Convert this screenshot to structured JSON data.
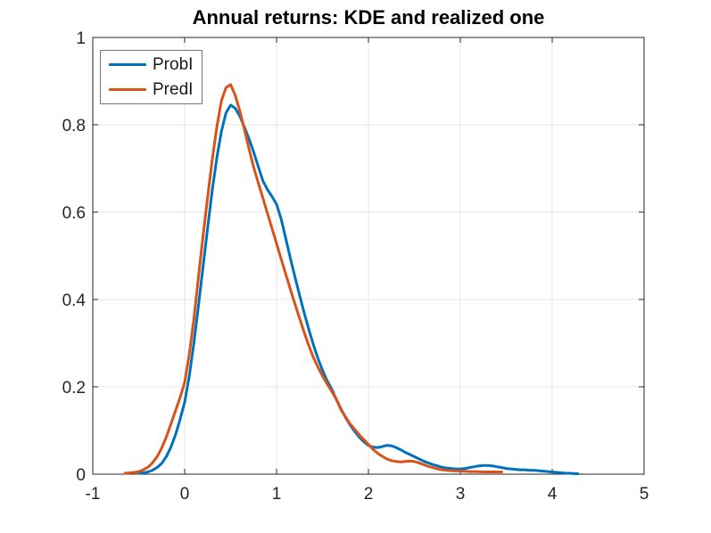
{
  "figure": {
    "background": "#ffffff"
  },
  "axes": {
    "color": "#262626",
    "grid_color": "#e6e6e6",
    "tick_label_color": "#262626",
    "tick_font_size": 19
  },
  "chart_data": {
    "type": "line",
    "title": "Annual returns: KDE and realized one",
    "xlabel": "",
    "ylabel": "",
    "xlim": [
      -1,
      5
    ],
    "ylim": [
      0,
      1
    ],
    "xticks": [
      -1,
      0,
      1,
      2,
      3,
      4,
      5
    ],
    "xtick_labels": [
      "-1",
      "0",
      "1",
      "2",
      "3",
      "4",
      "5"
    ],
    "yticks": [
      0,
      0.2,
      0.4,
      0.6,
      0.8,
      1
    ],
    "ytick_labels": [
      "0",
      "0.2",
      "0.4",
      "0.6",
      "0.8",
      "1"
    ],
    "grid": true,
    "legend_position": "top-left",
    "series": [
      {
        "name": "ProbI",
        "color": "#0072BD",
        "line_width": 3,
        "points": [
          [
            -0.5,
            0.002
          ],
          [
            -0.45,
            0.003
          ],
          [
            -0.4,
            0.005
          ],
          [
            -0.35,
            0.009
          ],
          [
            -0.3,
            0.015
          ],
          [
            -0.25,
            0.025
          ],
          [
            -0.2,
            0.04
          ],
          [
            -0.15,
            0.062
          ],
          [
            -0.1,
            0.09
          ],
          [
            -0.05,
            0.125
          ],
          [
            0,
            0.165
          ],
          [
            0.05,
            0.225
          ],
          [
            0.1,
            0.3
          ],
          [
            0.15,
            0.385
          ],
          [
            0.2,
            0.475
          ],
          [
            0.25,
            0.565
          ],
          [
            0.3,
            0.65
          ],
          [
            0.35,
            0.725
          ],
          [
            0.4,
            0.785
          ],
          [
            0.45,
            0.827
          ],
          [
            0.5,
            0.845
          ],
          [
            0.55,
            0.838
          ],
          [
            0.6,
            0.82
          ],
          [
            0.65,
            0.795
          ],
          [
            0.7,
            0.768
          ],
          [
            0.75,
            0.738
          ],
          [
            0.8,
            0.705
          ],
          [
            0.85,
            0.672
          ],
          [
            0.9,
            0.652
          ],
          [
            0.95,
            0.636
          ],
          [
            1,
            0.618
          ],
          [
            1.05,
            0.585
          ],
          [
            1.1,
            0.54
          ],
          [
            1.15,
            0.495
          ],
          [
            1.2,
            0.452
          ],
          [
            1.25,
            0.41
          ],
          [
            1.3,
            0.37
          ],
          [
            1.35,
            0.332
          ],
          [
            1.4,
            0.297
          ],
          [
            1.45,
            0.265
          ],
          [
            1.5,
            0.238
          ],
          [
            1.55,
            0.214
          ],
          [
            1.6,
            0.195
          ],
          [
            1.65,
            0.172
          ],
          [
            1.7,
            0.15
          ],
          [
            1.75,
            0.13
          ],
          [
            1.8,
            0.113
          ],
          [
            1.85,
            0.098
          ],
          [
            1.9,
            0.085
          ],
          [
            1.95,
            0.074
          ],
          [
            2,
            0.066
          ],
          [
            2.05,
            0.062
          ],
          [
            2.1,
            0.061
          ],
          [
            2.15,
            0.063
          ],
          [
            2.2,
            0.066
          ],
          [
            2.25,
            0.065
          ],
          [
            2.3,
            0.061
          ],
          [
            2.35,
            0.056
          ],
          [
            2.4,
            0.05
          ],
          [
            2.45,
            0.045
          ],
          [
            2.5,
            0.04
          ],
          [
            2.55,
            0.035
          ],
          [
            2.6,
            0.03
          ],
          [
            2.65,
            0.026
          ],
          [
            2.7,
            0.022
          ],
          [
            2.75,
            0.019
          ],
          [
            2.8,
            0.016
          ],
          [
            2.85,
            0.014
          ],
          [
            2.9,
            0.013
          ],
          [
            2.95,
            0.012
          ],
          [
            3,
            0.012
          ],
          [
            3.05,
            0.013
          ],
          [
            3.1,
            0.015
          ],
          [
            3.15,
            0.017
          ],
          [
            3.2,
            0.019
          ],
          [
            3.25,
            0.02
          ],
          [
            3.3,
            0.02
          ],
          [
            3.35,
            0.019
          ],
          [
            3.4,
            0.017
          ],
          [
            3.45,
            0.015
          ],
          [
            3.5,
            0.013
          ],
          [
            3.55,
            0.012
          ],
          [
            3.6,
            0.011
          ],
          [
            3.65,
            0.01
          ],
          [
            3.7,
            0.01
          ],
          [
            3.75,
            0.009
          ],
          [
            3.8,
            0.009
          ],
          [
            3.85,
            0.008
          ],
          [
            3.9,
            0.007
          ],
          [
            3.95,
            0.006
          ],
          [
            4,
            0.005
          ],
          [
            4.05,
            0.004
          ],
          [
            4.1,
            0.003
          ],
          [
            4.15,
            0.002
          ],
          [
            4.2,
            0.002
          ],
          [
            4.25,
            0.001
          ],
          [
            4.28,
            0.001
          ]
        ]
      },
      {
        "name": "PredI",
        "color": "#D95319",
        "line_width": 3,
        "points": [
          [
            -0.65,
            0.002
          ],
          [
            -0.6,
            0.003
          ],
          [
            -0.55,
            0.004
          ],
          [
            -0.5,
            0.006
          ],
          [
            -0.45,
            0.01
          ],
          [
            -0.4,
            0.016
          ],
          [
            -0.35,
            0.026
          ],
          [
            -0.3,
            0.04
          ],
          [
            -0.25,
            0.06
          ],
          [
            -0.2,
            0.085
          ],
          [
            -0.15,
            0.115
          ],
          [
            -0.1,
            0.145
          ],
          [
            -0.05,
            0.175
          ],
          [
            0,
            0.21
          ],
          [
            0.05,
            0.275
          ],
          [
            0.1,
            0.355
          ],
          [
            0.15,
            0.45
          ],
          [
            0.2,
            0.545
          ],
          [
            0.25,
            0.635
          ],
          [
            0.3,
            0.72
          ],
          [
            0.35,
            0.795
          ],
          [
            0.4,
            0.855
          ],
          [
            0.45,
            0.885
          ],
          [
            0.5,
            0.892
          ],
          [
            0.55,
            0.868
          ],
          [
            0.6,
            0.832
          ],
          [
            0.65,
            0.79
          ],
          [
            0.7,
            0.745
          ],
          [
            0.75,
            0.703
          ],
          [
            0.8,
            0.668
          ],
          [
            0.85,
            0.633
          ],
          [
            0.9,
            0.598
          ],
          [
            0.95,
            0.563
          ],
          [
            1,
            0.528
          ],
          [
            1.05,
            0.493
          ],
          [
            1.1,
            0.458
          ],
          [
            1.15,
            0.424
          ],
          [
            1.2,
            0.39
          ],
          [
            1.25,
            0.357
          ],
          [
            1.3,
            0.325
          ],
          [
            1.35,
            0.295
          ],
          [
            1.4,
            0.268
          ],
          [
            1.45,
            0.245
          ],
          [
            1.5,
            0.225
          ],
          [
            1.55,
            0.207
          ],
          [
            1.6,
            0.19
          ],
          [
            1.65,
            0.172
          ],
          [
            1.7,
            0.148
          ],
          [
            1.75,
            0.131
          ],
          [
            1.8,
            0.115
          ],
          [
            1.85,
            0.103
          ],
          [
            1.9,
            0.09
          ],
          [
            1.95,
            0.079
          ],
          [
            2,
            0.068
          ],
          [
            2.05,
            0.057
          ],
          [
            2.1,
            0.048
          ],
          [
            2.15,
            0.041
          ],
          [
            2.2,
            0.035
          ],
          [
            2.25,
            0.031
          ],
          [
            2.3,
            0.029
          ],
          [
            2.35,
            0.028
          ],
          [
            2.4,
            0.029
          ],
          [
            2.45,
            0.03
          ],
          [
            2.5,
            0.029
          ],
          [
            2.55,
            0.026
          ],
          [
            2.6,
            0.022
          ],
          [
            2.65,
            0.018
          ],
          [
            2.7,
            0.015
          ],
          [
            2.75,
            0.012
          ],
          [
            2.8,
            0.01
          ],
          [
            2.85,
            0.009
          ],
          [
            2.9,
            0.008
          ],
          [
            2.95,
            0.0075
          ],
          [
            3,
            0.007
          ],
          [
            3.05,
            0.0065
          ],
          [
            3.1,
            0.006
          ],
          [
            3.15,
            0.006
          ],
          [
            3.2,
            0.0055
          ],
          [
            3.25,
            0.005
          ],
          [
            3.3,
            0.005
          ],
          [
            3.35,
            0.005
          ],
          [
            3.4,
            0.005
          ],
          [
            3.45,
            0.005
          ]
        ]
      }
    ]
  }
}
